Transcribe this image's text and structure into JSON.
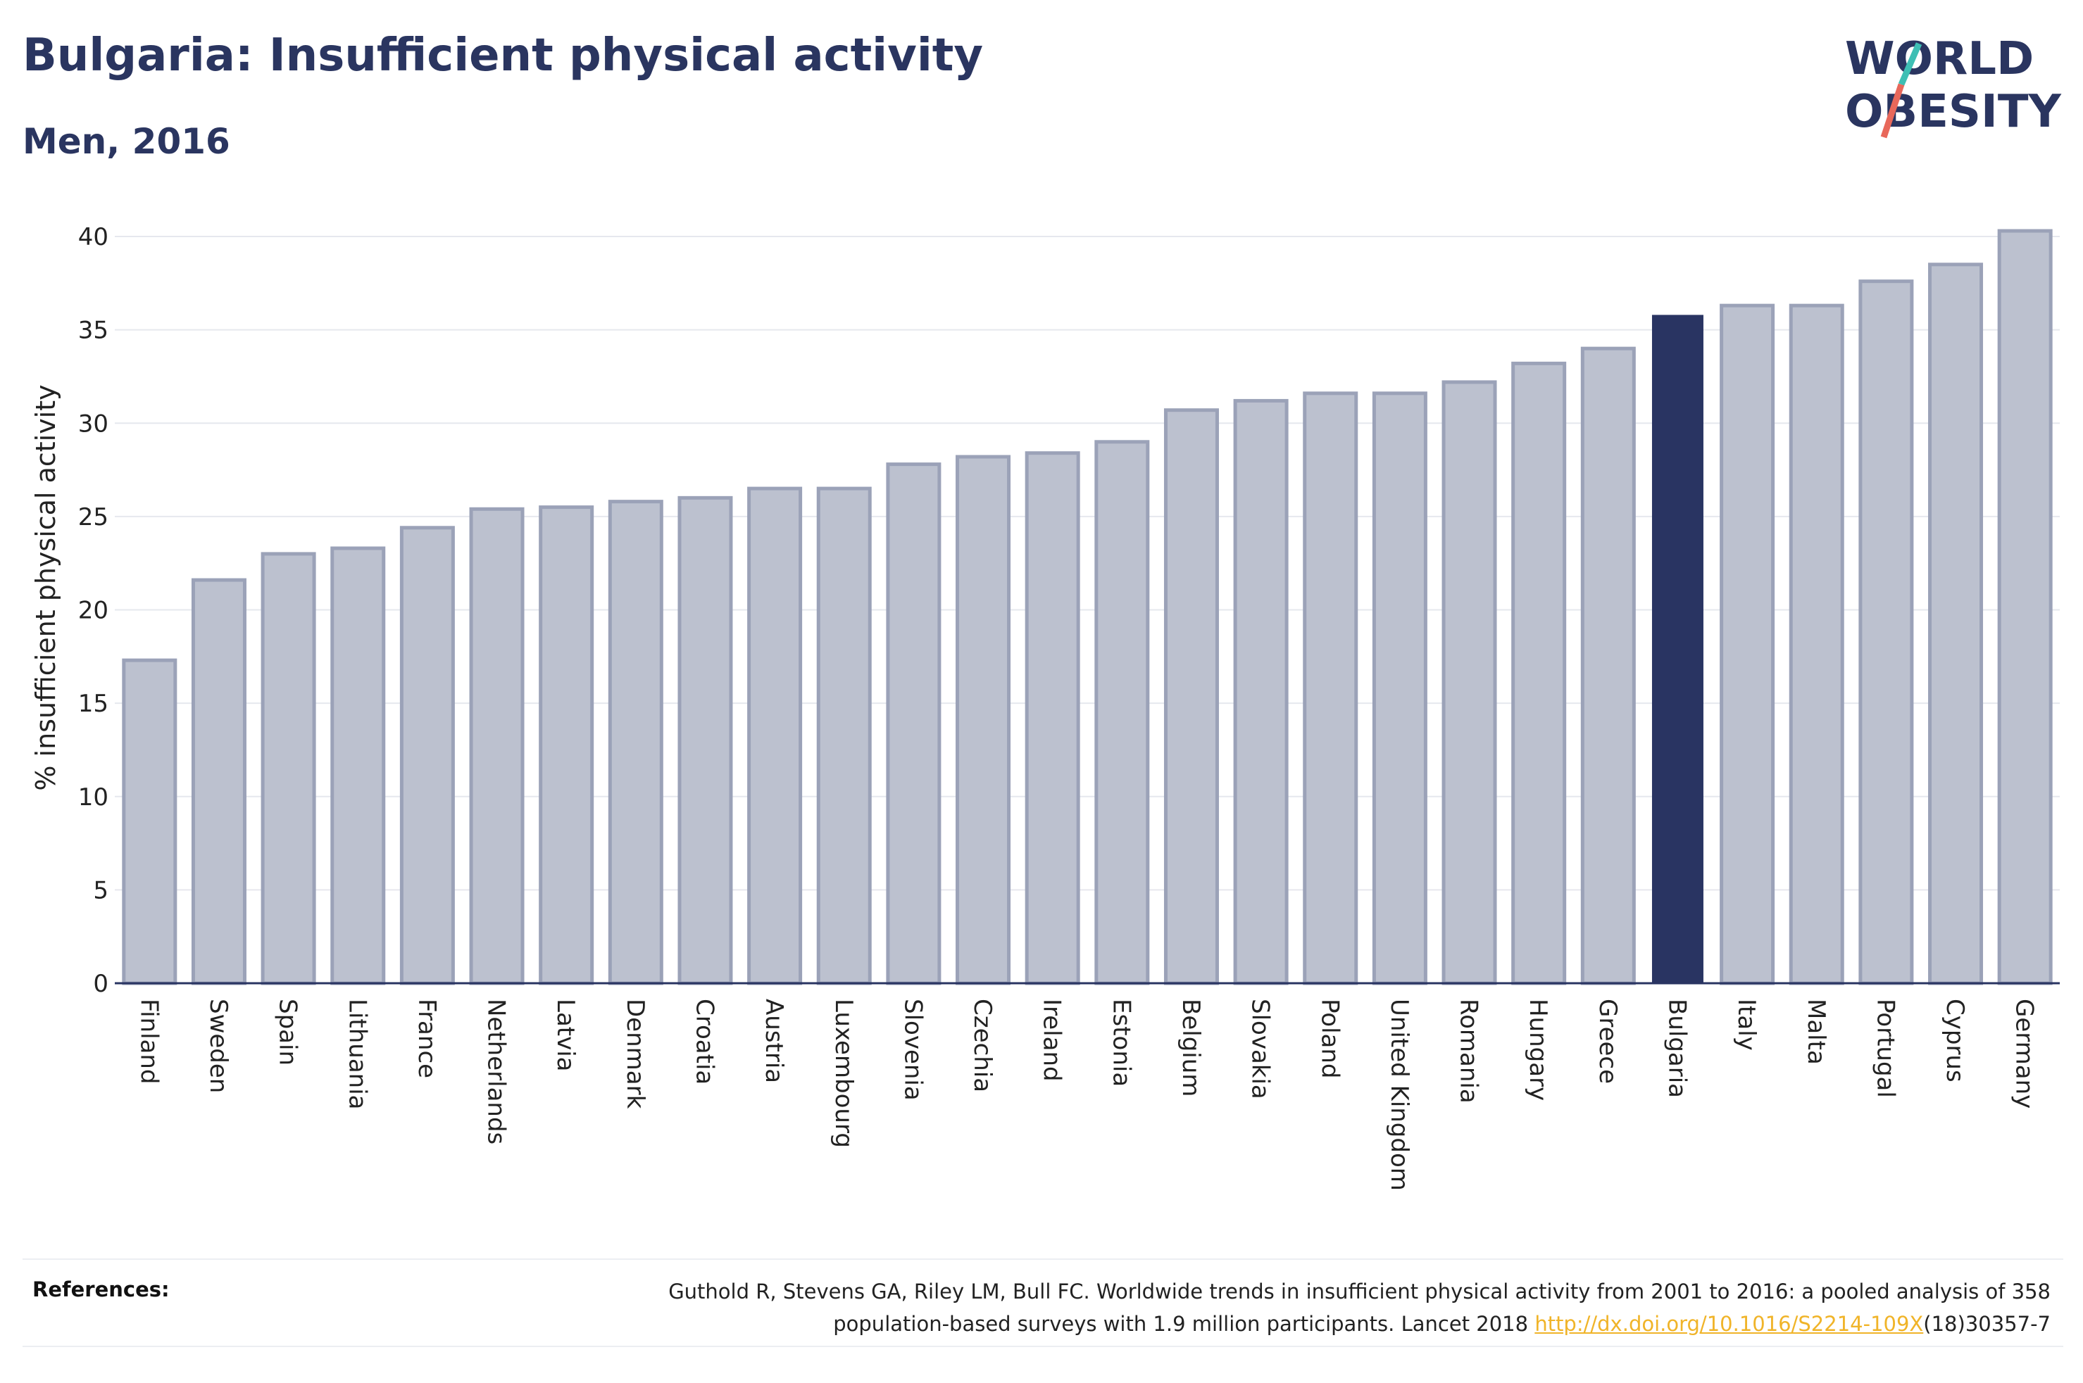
{
  "header": {
    "title": "Bulgaria: Insufficient physical activity",
    "subtitle": "Men, 2016"
  },
  "logo": {
    "line1": "WORLD",
    "line2": "OBESITY",
    "slash_color_top": "#3ebfb4",
    "slash_color_bottom": "#e8685a"
  },
  "colors": {
    "bar_default": "#bcc1cf",
    "bar_default_edge": "#9ba2b8",
    "bar_highlight": "#293462",
    "axis": "#293462",
    "grid": "#e6e8ee"
  },
  "chart_data": {
    "type": "bar",
    "categories": [
      "Finland",
      "Sweden",
      "Spain",
      "Lithuania",
      "France",
      "Netherlands",
      "Latvia",
      "Denmark",
      "Croatia",
      "Austria",
      "Luxembourg",
      "Slovenia",
      "Czechia",
      "Ireland",
      "Estonia",
      "Belgium",
      "Slovakia",
      "Poland",
      "United Kingdom",
      "Romania",
      "Hungary",
      "Greece",
      "Bulgaria",
      "Italy",
      "Malta",
      "Portugal",
      "Cyprus",
      "Germany"
    ],
    "values": [
      17.3,
      21.6,
      23.0,
      23.3,
      24.4,
      25.4,
      25.5,
      25.8,
      26.0,
      26.5,
      26.5,
      27.8,
      28.2,
      28.4,
      29.0,
      30.7,
      31.2,
      31.6,
      31.6,
      32.2,
      33.2,
      34.0,
      35.8,
      36.3,
      36.3,
      37.6,
      38.5,
      40.3
    ],
    "highlight": "Bulgaria",
    "title": "Bulgaria: Insufficient physical activity",
    "subtitle": "Men, 2016",
    "xlabel": "",
    "ylabel": "% insufficient physical activity",
    "ylim": [
      0,
      40
    ],
    "yticks": [
      0,
      5,
      10,
      15,
      20,
      25,
      30,
      35,
      40
    ],
    "grid": true
  },
  "references": {
    "label": "References:",
    "text_line1": "Guthold R, Stevens GA, Riley LM, Bull FC. Worldwide trends in insufficient physical activity from 2001 to 2016: a pooled analysis of 358",
    "text_line2_before": "population-based surveys with 1.9 million participants. Lancet 2018 ",
    "link": "http://dx.doi.org/10.1016/S2214-109X",
    "text_line2_after": "(18)30357-7"
  }
}
